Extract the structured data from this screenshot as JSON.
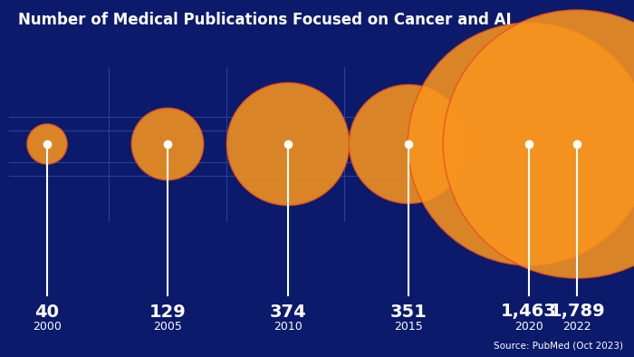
{
  "chart_data": {
    "type": "bubble",
    "title": "Number of Medical Publications Focused on Cancer and AI",
    "categories": [
      "2000",
      "2005",
      "2010",
      "2015",
      "2020",
      "2022"
    ],
    "values": [
      40,
      129,
      374,
      351,
      1463,
      1789
    ],
    "value_labels": [
      "40",
      "129",
      "374",
      "351",
      "1,463",
      "1,789"
    ],
    "data_labels": true,
    "color": "#f7941d",
    "tick_labels": false,
    "source": "Source: PubMed (Oct 2023)"
  }
}
